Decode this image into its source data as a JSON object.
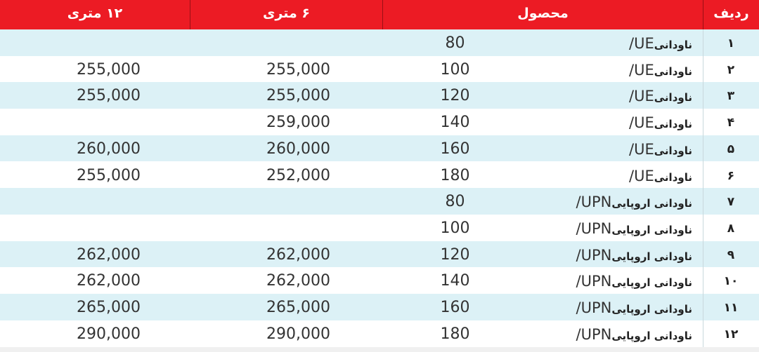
{
  "header": {
    "col_12m": "۱۲ متری",
    "col_6m": "۶ متری",
    "col_product": "محصول",
    "col_row": "ردیف"
  },
  "colors": {
    "header_bg": "#ec1b24",
    "alt_row_bg": "#dcf1f6"
  },
  "rows": [
    {
      "n": "۱",
      "name": "ناودانی",
      "code": "UE/",
      "size": "80",
      "p6": "",
      "p12": ""
    },
    {
      "n": "۲",
      "name": "ناودانی",
      "code": "UE/",
      "size": "100",
      "p6": "255,000",
      "p12": "255,000"
    },
    {
      "n": "۳",
      "name": "ناودانی",
      "code": "UE/",
      "size": "120",
      "p6": "255,000",
      "p12": "255,000"
    },
    {
      "n": "۴",
      "name": "ناودانی",
      "code": "UE/",
      "size": "140",
      "p6": "259,000",
      "p12": ""
    },
    {
      "n": "۵",
      "name": "ناودانی",
      "code": "UE/",
      "size": "160",
      "p6": "260,000",
      "p12": "260,000"
    },
    {
      "n": "۶",
      "name": "ناودانی",
      "code": "UE/",
      "size": "180",
      "p6": "252,000",
      "p12": "255,000"
    },
    {
      "n": "۷",
      "name": "ناودانی اروپایی",
      "code": "UPN/",
      "size": "80",
      "p6": "",
      "p12": ""
    },
    {
      "n": "۸",
      "name": "ناودانی اروپایی",
      "code": "UPN/",
      "size": "100",
      "p6": "",
      "p12": ""
    },
    {
      "n": "۹",
      "name": "ناودانی اروپایی",
      "code": "UPN/",
      "size": "120",
      "p6": "262,000",
      "p12": "262,000"
    },
    {
      "n": "۱۰",
      "name": "ناودانی اروپایی",
      "code": "UPN/",
      "size": "140",
      "p6": "262,000",
      "p12": "262,000"
    },
    {
      "n": "۱۱",
      "name": "ناودانی اروپایی",
      "code": "UPN/",
      "size": "160",
      "p6": "265,000",
      "p12": "265,000"
    },
    {
      "n": "۱۲",
      "name": "ناودانی اروپایی",
      "code": "UPN/",
      "size": "180",
      "p6": "290,000",
      "p12": "290,000"
    }
  ]
}
